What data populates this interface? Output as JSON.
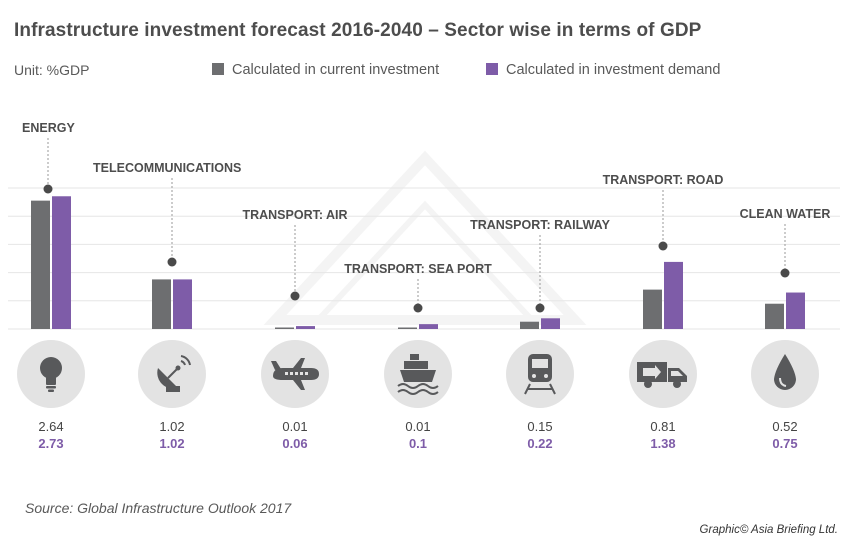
{
  "header": {
    "title": "Infrastructure investment forecast 2016-2040 – Sector wise in terms of GDP",
    "unit": "Unit: %GDP"
  },
  "legend": {
    "current": "Calculated in current investment",
    "demand": "Calculated in investment demand"
  },
  "colors": {
    "current": "#6d6e70",
    "demand": "#7e5ca8",
    "icon_circle": "#e3e3e3",
    "icon": "#58595b",
    "gridline": "#e6e6e6",
    "leader": "#9a9a9a",
    "dot": "#4a4a4a"
  },
  "chart_data": {
    "type": "bar",
    "title": "Infrastructure investment forecast 2016-2040 – Sector wise in terms of GDP",
    "ylabel": "%GDP",
    "ylim": [
      0,
      2.9
    ],
    "grid": true,
    "categories": [
      "ENERGY",
      "TELECOMMUNICATIONS",
      "TRANSPORT: AIR",
      "TRANSPORT: SEA PORT",
      "TRANSPORT: RAILWAY",
      "TRANSPORT: ROAD",
      "CLEAN WATER"
    ],
    "series": [
      {
        "name": "Calculated in current investment",
        "values": [
          2.64,
          1.02,
          0.01,
          0.01,
          0.15,
          0.81,
          0.52
        ],
        "labels": [
          "2.64",
          "1.02",
          "0.01",
          "0.01",
          "0.15",
          "0.81",
          "0.52"
        ]
      },
      {
        "name": "Calculated in investment demand",
        "values": [
          2.73,
          1.02,
          0.06,
          0.1,
          0.22,
          1.38,
          0.75
        ],
        "labels": [
          "2.73",
          "1.02",
          "0.06",
          "0.1",
          "0.22",
          "1.38",
          "0.75"
        ]
      }
    ],
    "icons": [
      "lightbulb-icon",
      "satellite-dish-icon",
      "airplane-icon",
      "ship-icon",
      "train-icon",
      "truck-icon",
      "water-drop-icon"
    ]
  },
  "footer": {
    "source": "Source: Global Infrastructure Outlook 2017",
    "credit": "Graphic© Asia Briefing Ltd."
  }
}
